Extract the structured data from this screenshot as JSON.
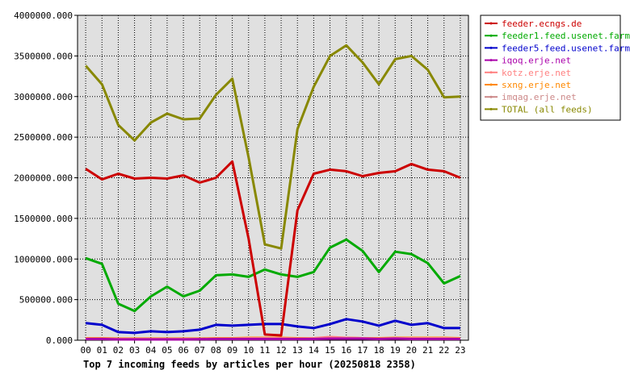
{
  "chart_data": {
    "type": "line",
    "title": "Top 7 incoming feeds by articles per hour (20250818 2358)",
    "xlabel": "",
    "ylabel": "",
    "categories": [
      "00",
      "01",
      "02",
      "03",
      "04",
      "05",
      "06",
      "07",
      "08",
      "09",
      "10",
      "11",
      "12",
      "13",
      "14",
      "15",
      "16",
      "17",
      "18",
      "19",
      "20",
      "21",
      "22",
      "23"
    ],
    "ylim": [
      0,
      4000000
    ],
    "yticks": [
      0,
      500000,
      1000000,
      1500000,
      2000000,
      2500000,
      3000000,
      3500000,
      4000000
    ],
    "ytick_labels": [
      "0.000",
      "500000.000",
      "1000000.000",
      "1500000.000",
      "2000000.000",
      "2500000.000",
      "3000000.000",
      "3500000.000",
      "4000000.000"
    ],
    "grid": true,
    "plot_background": "#e0e0e0",
    "legend_position": "right",
    "series": [
      {
        "name": "feeder.ecngs.de",
        "color": "#cc0000",
        "values": [
          2110000,
          1980000,
          2050000,
          1990000,
          2000000,
          1990000,
          2030000,
          1940000,
          2000000,
          2200000,
          1250000,
          70000,
          60000,
          1600000,
          2050000,
          2100000,
          2080000,
          2020000,
          2060000,
          2080000,
          2170000,
          2100000,
          2080000,
          2000000
        ]
      },
      {
        "name": "feeder1.feed.usenet.farm",
        "color": "#00aa00",
        "values": [
          1010000,
          940000,
          450000,
          360000,
          540000,
          660000,
          540000,
          610000,
          800000,
          810000,
          780000,
          870000,
          810000,
          780000,
          840000,
          1140000,
          1240000,
          1100000,
          840000,
          1090000,
          1060000,
          950000,
          700000,
          790000
        ]
      },
      {
        "name": "feeder5.feed.usenet.farm",
        "color": "#0000cc",
        "values": [
          210000,
          190000,
          100000,
          90000,
          110000,
          100000,
          110000,
          130000,
          190000,
          180000,
          190000,
          200000,
          200000,
          170000,
          150000,
          200000,
          260000,
          230000,
          180000,
          240000,
          190000,
          210000,
          150000,
          150000
        ]
      },
      {
        "name": "iqoq.erje.net",
        "color": "#aa00aa",
        "values": [
          15000,
          15000,
          10000,
          10000,
          10000,
          10000,
          10000,
          12000,
          15000,
          15000,
          15000,
          15000,
          15000,
          15000,
          15000,
          20000,
          20000,
          20000,
          15000,
          20000,
          15000,
          15000,
          15000,
          15000
        ]
      },
      {
        "name": "kotz.erje.net",
        "color": "#ff8080",
        "values": [
          20000,
          20000,
          15000,
          15000,
          15000,
          15000,
          15000,
          15000,
          20000,
          20000,
          25000,
          25000,
          25000,
          20000,
          25000,
          40000,
          30000,
          25000,
          20000,
          25000,
          25000,
          25000,
          25000,
          20000
        ]
      },
      {
        "name": "sxng.erje.net",
        "color": "#ff8800",
        "values": [
          25000,
          25000,
          20000,
          20000,
          20000,
          20000,
          20000,
          20000,
          25000,
          25000,
          30000,
          30000,
          30000,
          25000,
          25000,
          30000,
          30000,
          25000,
          25000,
          30000,
          30000,
          30000,
          30000,
          25000
        ]
      },
      {
        "name": "imqag.erje.net",
        "color": "#cc8888",
        "values": [
          20000,
          20000,
          15000,
          15000,
          15000,
          15000,
          15000,
          15000,
          20000,
          20000,
          20000,
          20000,
          20000,
          20000,
          20000,
          30000,
          25000,
          25000,
          20000,
          25000,
          25000,
          25000,
          20000,
          20000
        ]
      },
      {
        "name": "TOTAL (all feeds)",
        "color": "#888800",
        "values": [
          3380000,
          3150000,
          2650000,
          2460000,
          2680000,
          2790000,
          2720000,
          2730000,
          3020000,
          3220000,
          2250000,
          1180000,
          1130000,
          2600000,
          3120000,
          3500000,
          3630000,
          3420000,
          3150000,
          3460000,
          3500000,
          3330000,
          2990000,
          3000000
        ]
      }
    ]
  }
}
